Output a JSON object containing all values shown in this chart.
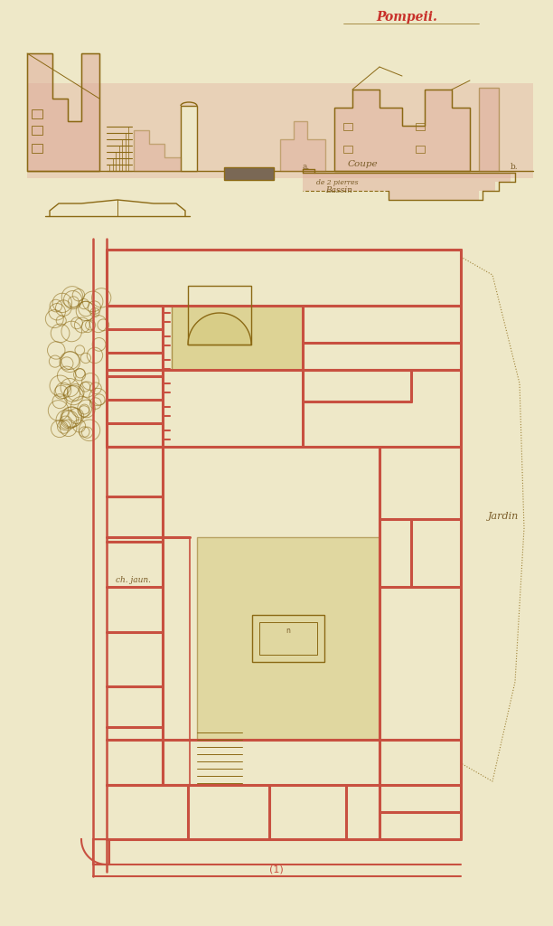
{
  "bg_color": "#eee8c8",
  "wall_color": "#c85040",
  "line_color": "#8B6914",
  "red_text_color": "#c8302a",
  "ink_color": "#7a5c28",
  "pink_wash": "#dda898",
  "yellow_fill": "#d4c87a",
  "title": "Pompeii.",
  "label_coupe": "Coupe",
  "label_jardin": "Jardin",
  "label_ch_jaune": "ch. jaun.",
  "label_bassin": "Bassin"
}
